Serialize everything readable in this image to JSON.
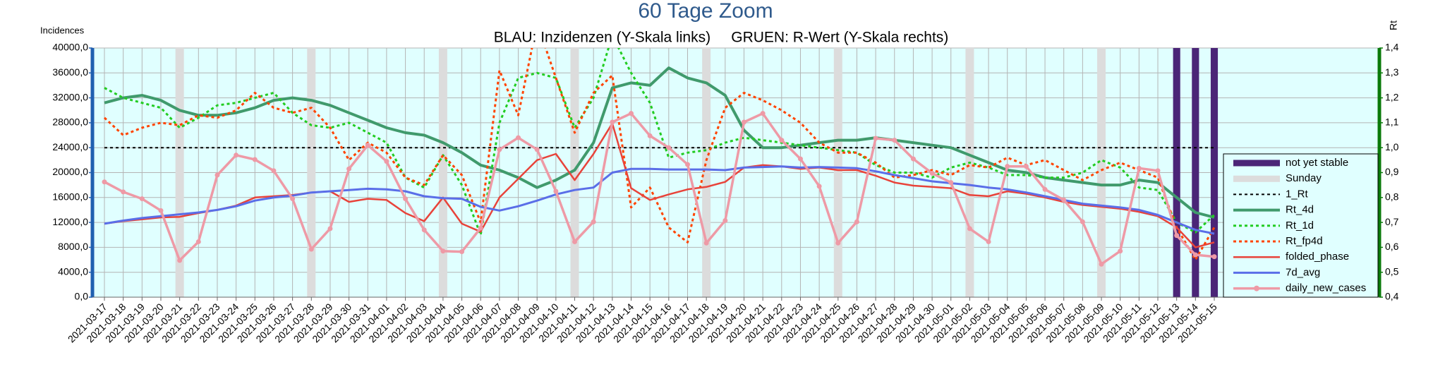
{
  "chart_data": {
    "type": "line",
    "title": "60 Tage Zoom",
    "subtitle": "BLAU: Inzidenzen (Y-Skala links)     GRUEN: R-Wert (Y-Skala rechts)",
    "y_label": "Incidences",
    "y2_label": "Rt",
    "categories": [
      "2021-03-17",
      "2021-03-18",
      "2021-03-19",
      "2021-03-20",
      "2021-03-21",
      "2021-03-22",
      "2021-03-23",
      "2021-03-24",
      "2021-03-25",
      "2021-03-26",
      "2021-03-27",
      "2021-03-28",
      "2021-03-29",
      "2021-03-30",
      "2021-03-31",
      "2021-04-01",
      "2021-04-02",
      "2021-04-03",
      "2021-04-04",
      "2021-04-05",
      "2021-04-06",
      "2021-04-07",
      "2021-04-08",
      "2021-04-09",
      "2021-04-10",
      "2021-04-11",
      "2021-04-12",
      "2021-04-13",
      "2021-04-14",
      "2021-04-15",
      "2021-04-16",
      "2021-04-17",
      "2021-04-18",
      "2021-04-19",
      "2021-04-20",
      "2021-04-21",
      "2021-04-22",
      "2021-04-23",
      "2021-04-24",
      "2021-04-25",
      "2021-04-26",
      "2021-04-27",
      "2021-04-28",
      "2021-04-29",
      "2021-04-30",
      "2021-05-01",
      "2021-05-02",
      "2021-05-03",
      "2021-05-04",
      "2021-05-05",
      "2021-05-06",
      "2021-05-07",
      "2021-05-08",
      "2021-05-09",
      "2021-05-10",
      "2021-05-11",
      "2021-05-12",
      "2021-05-13",
      "2021-05-14",
      "2021-05-15"
    ],
    "ylim": [
      0,
      40000
    ],
    "yticks": [
      {
        "value": 0,
        "label": "0,0"
      },
      {
        "value": 4000,
        "label": "4000,0"
      },
      {
        "value": 8000,
        "label": "8000,0"
      },
      {
        "value": 12000,
        "label": "12000,0"
      },
      {
        "value": 16000,
        "label": "16000,0"
      },
      {
        "value": 20000,
        "label": "20000,0"
      },
      {
        "value": 24000,
        "label": "24000,0"
      },
      {
        "value": 28000,
        "label": "28000,0"
      },
      {
        "value": 32000,
        "label": "32000,0"
      },
      {
        "value": 36000,
        "label": "36000,0"
      },
      {
        "value": 40000,
        "label": "40000,0"
      }
    ],
    "y2lim": [
      0.4,
      1.4
    ],
    "y2ticks": [
      {
        "value": 0.4,
        "label": "0,4"
      },
      {
        "value": 0.5,
        "label": "0,5"
      },
      {
        "value": 0.6,
        "label": "0,6"
      },
      {
        "value": 0.7,
        "label": "0,7"
      },
      {
        "value": 0.8,
        "label": "0,8"
      },
      {
        "value": 0.9,
        "label": "0,9"
      },
      {
        "value": 1.0,
        "label": "1,0"
      },
      {
        "value": 1.1,
        "label": "1,1"
      },
      {
        "value": 1.2,
        "label": "1,2"
      },
      {
        "value": 1.3,
        "label": "1,3"
      },
      {
        "value": 1.4,
        "label": "1,4"
      }
    ],
    "grid": true,
    "legend": "right",
    "series": [
      {
        "name": "not yet stable",
        "kind": "bar",
        "color": "#4b2577",
        "values": [
          null,
          null,
          null,
          null,
          null,
          null,
          null,
          null,
          null,
          null,
          null,
          null,
          null,
          null,
          null,
          null,
          null,
          null,
          null,
          null,
          null,
          null,
          null,
          null,
          null,
          null,
          null,
          null,
          null,
          null,
          null,
          null,
          null,
          null,
          null,
          null,
          null,
          null,
          null,
          null,
          null,
          null,
          null,
          null,
          null,
          null,
          null,
          null,
          null,
          null,
          null,
          null,
          null,
          null,
          null,
          null,
          null,
          40000,
          40000,
          40000
        ]
      },
      {
        "name": "Sunday",
        "kind": "bar",
        "color": "#dcdcdc",
        "values": [
          null,
          null,
          null,
          null,
          40000,
          null,
          null,
          null,
          null,
          null,
          null,
          40000,
          null,
          null,
          null,
          null,
          null,
          null,
          40000,
          null,
          null,
          null,
          null,
          null,
          null,
          40000,
          null,
          null,
          null,
          null,
          null,
          null,
          40000,
          null,
          null,
          null,
          null,
          null,
          null,
          40000,
          null,
          null,
          null,
          null,
          null,
          null,
          40000,
          null,
          null,
          null,
          null,
          null,
          null,
          40000,
          null,
          null,
          null,
          null,
          null,
          null
        ]
      },
      {
        "name": "1_Rt",
        "kind": "line",
        "axis": "y2",
        "color": "#000000",
        "dashed": true,
        "line_width": 2,
        "values": [
          1,
          1,
          1,
          1,
          1,
          1,
          1,
          1,
          1,
          1,
          1,
          1,
          1,
          1,
          1,
          1,
          1,
          1,
          1,
          1,
          1,
          1,
          1,
          1,
          1,
          1,
          1,
          1,
          1,
          1,
          1,
          1,
          1,
          1,
          1,
          1,
          1,
          1,
          1,
          1,
          1,
          1,
          1,
          1,
          1,
          1,
          1,
          1,
          1,
          1,
          1,
          1,
          1,
          1,
          1,
          1,
          1,
          1,
          1,
          1
        ]
      },
      {
        "name": "Rt_4d",
        "kind": "line",
        "axis": "y2",
        "color": "#409a6c",
        "line_width": 4,
        "values": [
          1.18,
          1.2,
          1.21,
          1.19,
          1.15,
          1.13,
          1.13,
          1.14,
          1.16,
          1.19,
          1.2,
          1.19,
          1.17,
          1.14,
          1.11,
          1.08,
          1.06,
          1.05,
          1.02,
          0.98,
          0.93,
          0.91,
          0.88,
          0.84,
          0.87,
          0.91,
          1.02,
          1.24,
          1.26,
          1.25,
          1.32,
          1.28,
          1.26,
          1.21,
          1.07,
          1.0,
          1.0,
          1.01,
          1.02,
          1.03,
          1.03,
          1.04,
          1.03,
          1.02,
          1.01,
          1.0,
          0.97,
          0.94,
          0.91,
          0.9,
          0.88,
          0.87,
          0.86,
          0.85,
          0.85,
          0.87,
          0.86,
          0.8,
          0.74,
          0.72
        ]
      },
      {
        "name": "Rt_1d",
        "kind": "line",
        "axis": "y2",
        "color": "#22cc22",
        "dashed": true,
        "line_width": 3,
        "values": [
          1.24,
          1.2,
          1.18,
          1.16,
          1.08,
          1.12,
          1.17,
          1.18,
          1.2,
          1.22,
          1.14,
          1.09,
          1.08,
          1.1,
          1.06,
          1.02,
          0.88,
          0.84,
          0.97,
          0.85,
          0.65,
          1.1,
          1.28,
          1.3,
          1.28,
          1.08,
          1.2,
          1.45,
          1.3,
          1.18,
          0.96,
          0.98,
          0.99,
          1.02,
          1.04,
          1.03,
          1.02,
          1.01,
          1.0,
          0.99,
          0.98,
          0.93,
          0.9,
          0.9,
          0.88,
          0.92,
          0.94,
          0.92,
          0.89,
          0.89,
          0.88,
          0.88,
          0.9,
          0.95,
          0.92,
          0.84,
          0.83,
          0.7,
          0.66,
          0.73
        ]
      },
      {
        "name": "Rt_fp4d",
        "kind": "line",
        "axis": "y2",
        "color": "#ff4400",
        "dashed": true,
        "line_width": 3,
        "values": [
          1.12,
          1.05,
          1.08,
          1.1,
          1.09,
          1.13,
          1.12,
          1.15,
          1.22,
          1.16,
          1.14,
          1.16,
          1.08,
          0.95,
          1.02,
          0.98,
          0.88,
          0.85,
          0.97,
          0.89,
          0.7,
          1.31,
          1.13,
          1.5,
          1.28,
          1.06,
          1.22,
          1.29,
          0.76,
          0.84,
          0.68,
          0.62,
          0.95,
          1.16,
          1.22,
          1.19,
          1.15,
          1.1,
          1.02,
          0.98,
          0.98,
          0.94,
          0.88,
          0.89,
          0.91,
          0.89,
          0.93,
          0.92,
          0.96,
          0.93,
          0.95,
          0.91,
          0.87,
          0.91,
          0.94,
          0.91,
          0.88,
          0.68,
          0.55,
          0.68
        ]
      },
      {
        "name": "folded_phase",
        "kind": "line",
        "color": "#e8433a",
        "line_width": 2.5,
        "values": [
          11800,
          12200,
          12500,
          12800,
          12900,
          13500,
          14000,
          14700,
          16000,
          16200,
          16400,
          16800,
          17000,
          15300,
          15800,
          15600,
          13500,
          12200,
          16000,
          11800,
          10500,
          16000,
          19000,
          22000,
          23000,
          18800,
          23000,
          27900,
          17500,
          15600,
          16500,
          17300,
          17700,
          18500,
          20800,
          21200,
          21000,
          20600,
          20800,
          20400,
          20400,
          19500,
          18400,
          17900,
          17700,
          17500,
          16400,
          16200,
          17000,
          16600,
          16000,
          15300,
          14800,
          14500,
          14200,
          13700,
          13000,
          11200,
          8000,
          8800
        ]
      },
      {
        "name": "7d_avg",
        "kind": "line",
        "color": "#5a6ee8",
        "line_width": 3,
        "values": [
          11800,
          12300,
          12700,
          13000,
          13300,
          13600,
          14000,
          14600,
          15500,
          16000,
          16300,
          16800,
          17000,
          17200,
          17400,
          17300,
          17000,
          16200,
          15900,
          15800,
          14500,
          13900,
          14600,
          15500,
          16500,
          17200,
          17600,
          20000,
          20600,
          20600,
          20500,
          20500,
          20500,
          20400,
          20800,
          20900,
          21000,
          20800,
          20900,
          20800,
          20700,
          20200,
          19600,
          19100,
          18600,
          18300,
          18000,
          17600,
          17300,
          16800,
          16200,
          15600,
          15000,
          14700,
          14400,
          14000,
          13200,
          12000,
          10800,
          10200
        ]
      },
      {
        "name": "daily_new_cases",
        "kind": "line",
        "color": "#ee9aa6",
        "line_width": 3.5,
        "marker": true,
        "values": [
          18500,
          16900,
          15800,
          13900,
          5900,
          8900,
          19600,
          22800,
          22100,
          20300,
          15800,
          7700,
          11000,
          20600,
          24400,
          21800,
          15800,
          10800,
          7400,
          7300,
          11100,
          23700,
          25600,
          23700,
          17000,
          8900,
          12100,
          28100,
          29500,
          25900,
          24000,
          21300,
          8700,
          12300,
          28100,
          29500,
          25200,
          22200,
          17800,
          8700,
          12100,
          25500,
          25200,
          22200,
          19900,
          18400,
          11000,
          8900,
          21000,
          21000,
          17300,
          15600,
          12100,
          5300,
          7400,
          20700,
          20300,
          9900,
          6800,
          6500
        ]
      }
    ]
  }
}
